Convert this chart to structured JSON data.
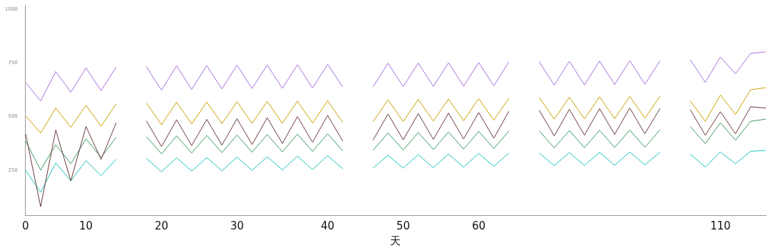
{
  "chart_data": {
    "type": "line",
    "xlabel": "天",
    "categories": [
      "0",
      null,
      null,
      null,
      "10",
      null,
      null,
      null,
      null,
      "20",
      null,
      null,
      null,
      null,
      "30",
      null,
      null,
      null,
      null,
      null,
      "40",
      null,
      null,
      null,
      null,
      "50",
      null,
      null,
      null,
      null,
      "60",
      null,
      null,
      null,
      null,
      null,
      null,
      null,
      null,
      null,
      null,
      null,
      null,
      null,
      null,
      null,
      "110",
      null,
      null,
      null
    ],
    "ylim": [
      40,
      1020
    ],
    "yticks": [
      250,
      500,
      750,
      1000
    ],
    "grid": false,
    "legend": false,
    "marker": "none",
    "line_style": "solid",
    "series": [
      {
        "color": "#a86fdc",
        "values": [
          659,
          573,
          710,
          614,
          727,
          621,
          731,
          null,
          733,
          623,
          737,
          627,
          738,
          629,
          740,
          631,
          741,
          632,
          742,
          633,
          744,
          638,
          null,
          639,
          749,
          640,
          750,
          641,
          751,
          642,
          752,
          644,
          755,
          null,
          756,
          647,
          758,
          648,
          759,
          650,
          761,
          651,
          760,
          null,
          765,
          660,
          778,
          700,
          795,
          802
        ]
      },
      {
        "color": "#c9a100",
        "values": [
          505,
          423,
          540,
          450,
          553,
          455,
          560,
          null,
          563,
          462,
          567,
          466,
          568,
          467,
          569,
          468,
          571,
          469,
          572,
          470,
          574,
          473,
          null,
          476,
          578,
          477,
          580,
          479,
          582,
          481,
          584,
          483,
          586,
          null,
          589,
          488,
          590,
          489,
          592,
          491,
          594,
          493,
          595,
          null,
          574,
          478,
          601,
          510,
          625,
          635
        ]
      },
      {
        "color": "#6b3a3a",
        "values": [
          420,
          80,
          437,
          200,
          454,
          300,
          471,
          null,
          480,
          360,
          485,
          365,
          487,
          367,
          490,
          370,
          495,
          375,
          500,
          380,
          506,
          386,
          null,
          390,
          512,
          392,
          514,
          394,
          516,
          396,
          519,
          399,
          525,
          null,
          530,
          410,
          534,
          414,
          537,
          417,
          540,
          420,
          538,
          null,
          533,
          413,
          523,
          420,
          546,
          540
        ]
      },
      {
        "color": "#3a9a60",
        "values": [
          386,
          250,
          369,
          280,
          396,
          310,
          403,
          null,
          407,
          326,
          410,
          330,
          412,
          332,
          414,
          334,
          416,
          336,
          418,
          338,
          420,
          340,
          null,
          343,
          424,
          344,
          426,
          346,
          428,
          348,
          431,
          351,
          433,
          null,
          434,
          354,
          435,
          355,
          436,
          356,
          437,
          357,
          438,
          null,
          454,
          374,
          471,
          390,
          478,
          488
        ]
      },
      {
        "color": "#19c4c0",
        "values": [
          250,
          147,
          284,
          200,
          294,
          225,
          301,
          null,
          305,
          243,
          308,
          246,
          309,
          247,
          311,
          249,
          313,
          251,
          315,
          253,
          318,
          256,
          null,
          259,
          320,
          260,
          322,
          262,
          325,
          265,
          328,
          268,
          330,
          null,
          331,
          271,
          332,
          272,
          333,
          273,
          335,
          275,
          334,
          null,
          325,
          265,
          335,
          280,
          338,
          342
        ]
      }
    ]
  }
}
